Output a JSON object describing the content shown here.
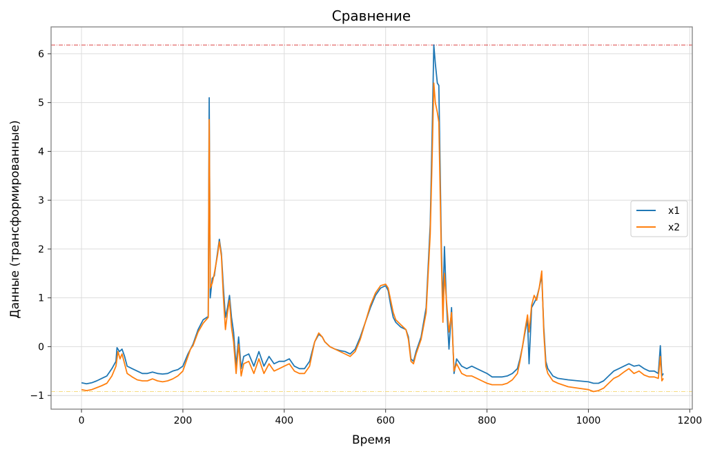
{
  "chart_data": {
    "type": "line",
    "title": "Сравнение",
    "xlabel": "Время",
    "ylabel": "Данные (трансформированные)",
    "xlim": [
      -60,
      1205
    ],
    "ylim": [
      -1.28,
      6.55
    ],
    "xticks": [
      0,
      200,
      400,
      600,
      800,
      1000,
      1200
    ],
    "xtick_labels": [
      "0",
      "200",
      "400",
      "600",
      "800",
      "1000",
      "1200"
    ],
    "yticks": [
      -1,
      0,
      1,
      2,
      3,
      4,
      5,
      6
    ],
    "ytick_labels": [
      "−1",
      "0",
      "1",
      "2",
      "3",
      "4",
      "5",
      "6"
    ],
    "grid": true,
    "legend_position": "center-right",
    "reference_lines": [
      {
        "y": 6.18,
        "color": "#d62728",
        "style": "dash-dot"
      },
      {
        "y": -0.92,
        "color": "#f5d76e",
        "style": "dash-dot"
      }
    ],
    "series": [
      {
        "name": "x1",
        "color": "#1f77b4",
        "points": [
          [
            0,
            -0.74
          ],
          [
            10,
            -0.76
          ],
          [
            20,
            -0.74
          ],
          [
            30,
            -0.7
          ],
          [
            40,
            -0.65
          ],
          [
            50,
            -0.6
          ],
          [
            60,
            -0.45
          ],
          [
            68,
            -0.3
          ],
          [
            70,
            -0.02
          ],
          [
            75,
            -0.1
          ],
          [
            80,
            -0.05
          ],
          [
            85,
            -0.2
          ],
          [
            90,
            -0.4
          ],
          [
            100,
            -0.45
          ],
          [
            110,
            -0.5
          ],
          [
            120,
            -0.55
          ],
          [
            130,
            -0.55
          ],
          [
            140,
            -0.52
          ],
          [
            150,
            -0.55
          ],
          [
            160,
            -0.56
          ],
          [
            170,
            -0.55
          ],
          [
            180,
            -0.5
          ],
          [
            190,
            -0.47
          ],
          [
            200,
            -0.4
          ],
          [
            210,
            -0.15
          ],
          [
            215,
            -0.05
          ],
          [
            220,
            0.05
          ],
          [
            230,
            0.35
          ],
          [
            240,
            0.55
          ],
          [
            250,
            0.62
          ],
          [
            252,
            5.1
          ],
          [
            254,
            1.0
          ],
          [
            258,
            1.4
          ],
          [
            262,
            1.45
          ],
          [
            268,
            1.9
          ],
          [
            272,
            2.2
          ],
          [
            276,
            1.9
          ],
          [
            280,
            1.2
          ],
          [
            284,
            0.6
          ],
          [
            288,
            0.8
          ],
          [
            292,
            1.05
          ],
          [
            296,
            0.6
          ],
          [
            300,
            0.3
          ],
          [
            305,
            -0.4
          ],
          [
            310,
            0.2
          ],
          [
            315,
            -0.45
          ],
          [
            320,
            -0.2
          ],
          [
            330,
            -0.15
          ],
          [
            340,
            -0.4
          ],
          [
            350,
            -0.1
          ],
          [
            360,
            -0.4
          ],
          [
            370,
            -0.2
          ],
          [
            380,
            -0.35
          ],
          [
            390,
            -0.3
          ],
          [
            400,
            -0.3
          ],
          [
            410,
            -0.25
          ],
          [
            420,
            -0.4
          ],
          [
            430,
            -0.45
          ],
          [
            440,
            -0.45
          ],
          [
            450,
            -0.3
          ],
          [
            455,
            -0.1
          ],
          [
            460,
            0.1
          ],
          [
            468,
            0.25
          ],
          [
            475,
            0.2
          ],
          [
            480,
            0.1
          ],
          [
            490,
            0.0
          ],
          [
            500,
            -0.05
          ],
          [
            510,
            -0.08
          ],
          [
            520,
            -0.1
          ],
          [
            530,
            -0.15
          ],
          [
            540,
            -0.05
          ],
          [
            550,
            0.2
          ],
          [
            560,
            0.5
          ],
          [
            570,
            0.8
          ],
          [
            580,
            1.05
          ],
          [
            590,
            1.2
          ],
          [
            600,
            1.25
          ],
          [
            605,
            1.15
          ],
          [
            610,
            0.85
          ],
          [
            615,
            0.6
          ],
          [
            620,
            0.5
          ],
          [
            630,
            0.4
          ],
          [
            640,
            0.35
          ],
          [
            645,
            0.2
          ],
          [
            650,
            -0.25
          ],
          [
            655,
            -0.3
          ],
          [
            660,
            -0.1
          ],
          [
            670,
            0.2
          ],
          [
            680,
            0.8
          ],
          [
            688,
            2.5
          ],
          [
            692,
            4.5
          ],
          [
            695,
            6.18
          ],
          [
            698,
            5.8
          ],
          [
            702,
            5.4
          ],
          [
            705,
            5.35
          ],
          [
            710,
            2.0
          ],
          [
            713,
            0.8
          ],
          [
            716,
            2.05
          ],
          [
            720,
            0.9
          ],
          [
            725,
            -0.05
          ],
          [
            730,
            0.8
          ],
          [
            735,
            -0.55
          ],
          [
            740,
            -0.25
          ],
          [
            750,
            -0.4
          ],
          [
            760,
            -0.45
          ],
          [
            770,
            -0.4
          ],
          [
            780,
            -0.45
          ],
          [
            790,
            -0.5
          ],
          [
            800,
            -0.55
          ],
          [
            810,
            -0.62
          ],
          [
            820,
            -0.62
          ],
          [
            830,
            -0.62
          ],
          [
            840,
            -0.6
          ],
          [
            850,
            -0.55
          ],
          [
            860,
            -0.45
          ],
          [
            865,
            -0.25
          ],
          [
            870,
            0.0
          ],
          [
            875,
            0.3
          ],
          [
            880,
            0.55
          ],
          [
            883,
            -0.35
          ],
          [
            888,
            0.8
          ],
          [
            893,
            0.9
          ],
          [
            898,
            1.0
          ],
          [
            903,
            1.2
          ],
          [
            908,
            1.45
          ],
          [
            912,
            0.4
          ],
          [
            916,
            -0.3
          ],
          [
            920,
            -0.45
          ],
          [
            930,
            -0.6
          ],
          [
            940,
            -0.65
          ],
          [
            960,
            -0.68
          ],
          [
            980,
            -0.7
          ],
          [
            1000,
            -0.72
          ],
          [
            1010,
            -0.75
          ],
          [
            1020,
            -0.75
          ],
          [
            1030,
            -0.7
          ],
          [
            1040,
            -0.6
          ],
          [
            1050,
            -0.5
          ],
          [
            1060,
            -0.45
          ],
          [
            1070,
            -0.4
          ],
          [
            1080,
            -0.35
          ],
          [
            1090,
            -0.4
          ],
          [
            1100,
            -0.38
          ],
          [
            1110,
            -0.45
          ],
          [
            1120,
            -0.5
          ],
          [
            1130,
            -0.5
          ],
          [
            1138,
            -0.55
          ],
          [
            1142,
            0.02
          ],
          [
            1145,
            -0.6
          ],
          [
            1148,
            -0.55
          ]
        ]
      },
      {
        "name": "x2",
        "color": "#ff7f0e",
        "points": [
          [
            0,
            -0.88
          ],
          [
            10,
            -0.9
          ],
          [
            20,
            -0.88
          ],
          [
            30,
            -0.84
          ],
          [
            40,
            -0.8
          ],
          [
            50,
            -0.75
          ],
          [
            60,
            -0.6
          ],
          [
            68,
            -0.4
          ],
          [
            72,
            -0.1
          ],
          [
            76,
            -0.25
          ],
          [
            80,
            -0.15
          ],
          [
            85,
            -0.35
          ],
          [
            90,
            -0.55
          ],
          [
            100,
            -0.62
          ],
          [
            110,
            -0.68
          ],
          [
            120,
            -0.7
          ],
          [
            130,
            -0.7
          ],
          [
            140,
            -0.66
          ],
          [
            150,
            -0.7
          ],
          [
            160,
            -0.72
          ],
          [
            170,
            -0.7
          ],
          [
            180,
            -0.66
          ],
          [
            190,
            -0.6
          ],
          [
            200,
            -0.5
          ],
          [
            210,
            -0.2
          ],
          [
            215,
            -0.05
          ],
          [
            220,
            0.02
          ],
          [
            230,
            0.3
          ],
          [
            240,
            0.48
          ],
          [
            250,
            0.6
          ],
          [
            252,
            4.65
          ],
          [
            254,
            1.2
          ],
          [
            258,
            1.3
          ],
          [
            262,
            1.5
          ],
          [
            268,
            1.85
          ],
          [
            272,
            2.15
          ],
          [
            276,
            1.85
          ],
          [
            280,
            1.0
          ],
          [
            284,
            0.35
          ],
          [
            288,
            0.7
          ],
          [
            292,
            0.95
          ],
          [
            296,
            0.4
          ],
          [
            300,
            0.1
          ],
          [
            305,
            -0.55
          ],
          [
            310,
            0.05
          ],
          [
            315,
            -0.6
          ],
          [
            320,
            -0.35
          ],
          [
            330,
            -0.3
          ],
          [
            340,
            -0.55
          ],
          [
            350,
            -0.25
          ],
          [
            360,
            -0.55
          ],
          [
            370,
            -0.35
          ],
          [
            380,
            -0.5
          ],
          [
            390,
            -0.45
          ],
          [
            400,
            -0.4
          ],
          [
            410,
            -0.35
          ],
          [
            420,
            -0.5
          ],
          [
            430,
            -0.55
          ],
          [
            440,
            -0.55
          ],
          [
            450,
            -0.4
          ],
          [
            455,
            -0.15
          ],
          [
            460,
            0.1
          ],
          [
            468,
            0.28
          ],
          [
            475,
            0.2
          ],
          [
            480,
            0.1
          ],
          [
            490,
            0.0
          ],
          [
            500,
            -0.05
          ],
          [
            510,
            -0.1
          ],
          [
            520,
            -0.15
          ],
          [
            530,
            -0.2
          ],
          [
            540,
            -0.1
          ],
          [
            550,
            0.15
          ],
          [
            560,
            0.5
          ],
          [
            570,
            0.85
          ],
          [
            580,
            1.1
          ],
          [
            590,
            1.25
          ],
          [
            600,
            1.28
          ],
          [
            605,
            1.2
          ],
          [
            610,
            0.95
          ],
          [
            615,
            0.7
          ],
          [
            620,
            0.55
          ],
          [
            630,
            0.45
          ],
          [
            640,
            0.35
          ],
          [
            645,
            0.15
          ],
          [
            650,
            -0.3
          ],
          [
            655,
            -0.35
          ],
          [
            660,
            -0.15
          ],
          [
            670,
            0.15
          ],
          [
            680,
            0.7
          ],
          [
            688,
            2.3
          ],
          [
            692,
            4.0
          ],
          [
            695,
            5.4
          ],
          [
            698,
            5.0
          ],
          [
            702,
            4.8
          ],
          [
            705,
            4.6
          ],
          [
            710,
            1.8
          ],
          [
            713,
            0.5
          ],
          [
            716,
            1.5
          ],
          [
            720,
            0.95
          ],
          [
            725,
            0.3
          ],
          [
            730,
            0.7
          ],
          [
            735,
            -0.5
          ],
          [
            740,
            -0.35
          ],
          [
            750,
            -0.55
          ],
          [
            760,
            -0.6
          ],
          [
            770,
            -0.6
          ],
          [
            780,
            -0.65
          ],
          [
            790,
            -0.7
          ],
          [
            800,
            -0.75
          ],
          [
            810,
            -0.78
          ],
          [
            820,
            -0.78
          ],
          [
            830,
            -0.78
          ],
          [
            840,
            -0.75
          ],
          [
            850,
            -0.68
          ],
          [
            860,
            -0.55
          ],
          [
            865,
            -0.3
          ],
          [
            870,
            0.0
          ],
          [
            875,
            0.35
          ],
          [
            880,
            0.65
          ],
          [
            883,
            0.3
          ],
          [
            888,
            0.85
          ],
          [
            893,
            1.05
          ],
          [
            898,
            0.95
          ],
          [
            903,
            1.2
          ],
          [
            908,
            1.55
          ],
          [
            912,
            0.3
          ],
          [
            916,
            -0.4
          ],
          [
            920,
            -0.55
          ],
          [
            930,
            -0.7
          ],
          [
            940,
            -0.75
          ],
          [
            960,
            -0.82
          ],
          [
            980,
            -0.85
          ],
          [
            1000,
            -0.88
          ],
          [
            1010,
            -0.92
          ],
          [
            1020,
            -0.9
          ],
          [
            1030,
            -0.85
          ],
          [
            1040,
            -0.75
          ],
          [
            1050,
            -0.65
          ],
          [
            1060,
            -0.6
          ],
          [
            1070,
            -0.52
          ],
          [
            1080,
            -0.45
          ],
          [
            1090,
            -0.55
          ],
          [
            1100,
            -0.5
          ],
          [
            1110,
            -0.58
          ],
          [
            1120,
            -0.62
          ],
          [
            1130,
            -0.62
          ],
          [
            1138,
            -0.65
          ],
          [
            1142,
            -0.2
          ],
          [
            1145,
            -0.7
          ],
          [
            1148,
            -0.65
          ]
        ]
      }
    ]
  }
}
